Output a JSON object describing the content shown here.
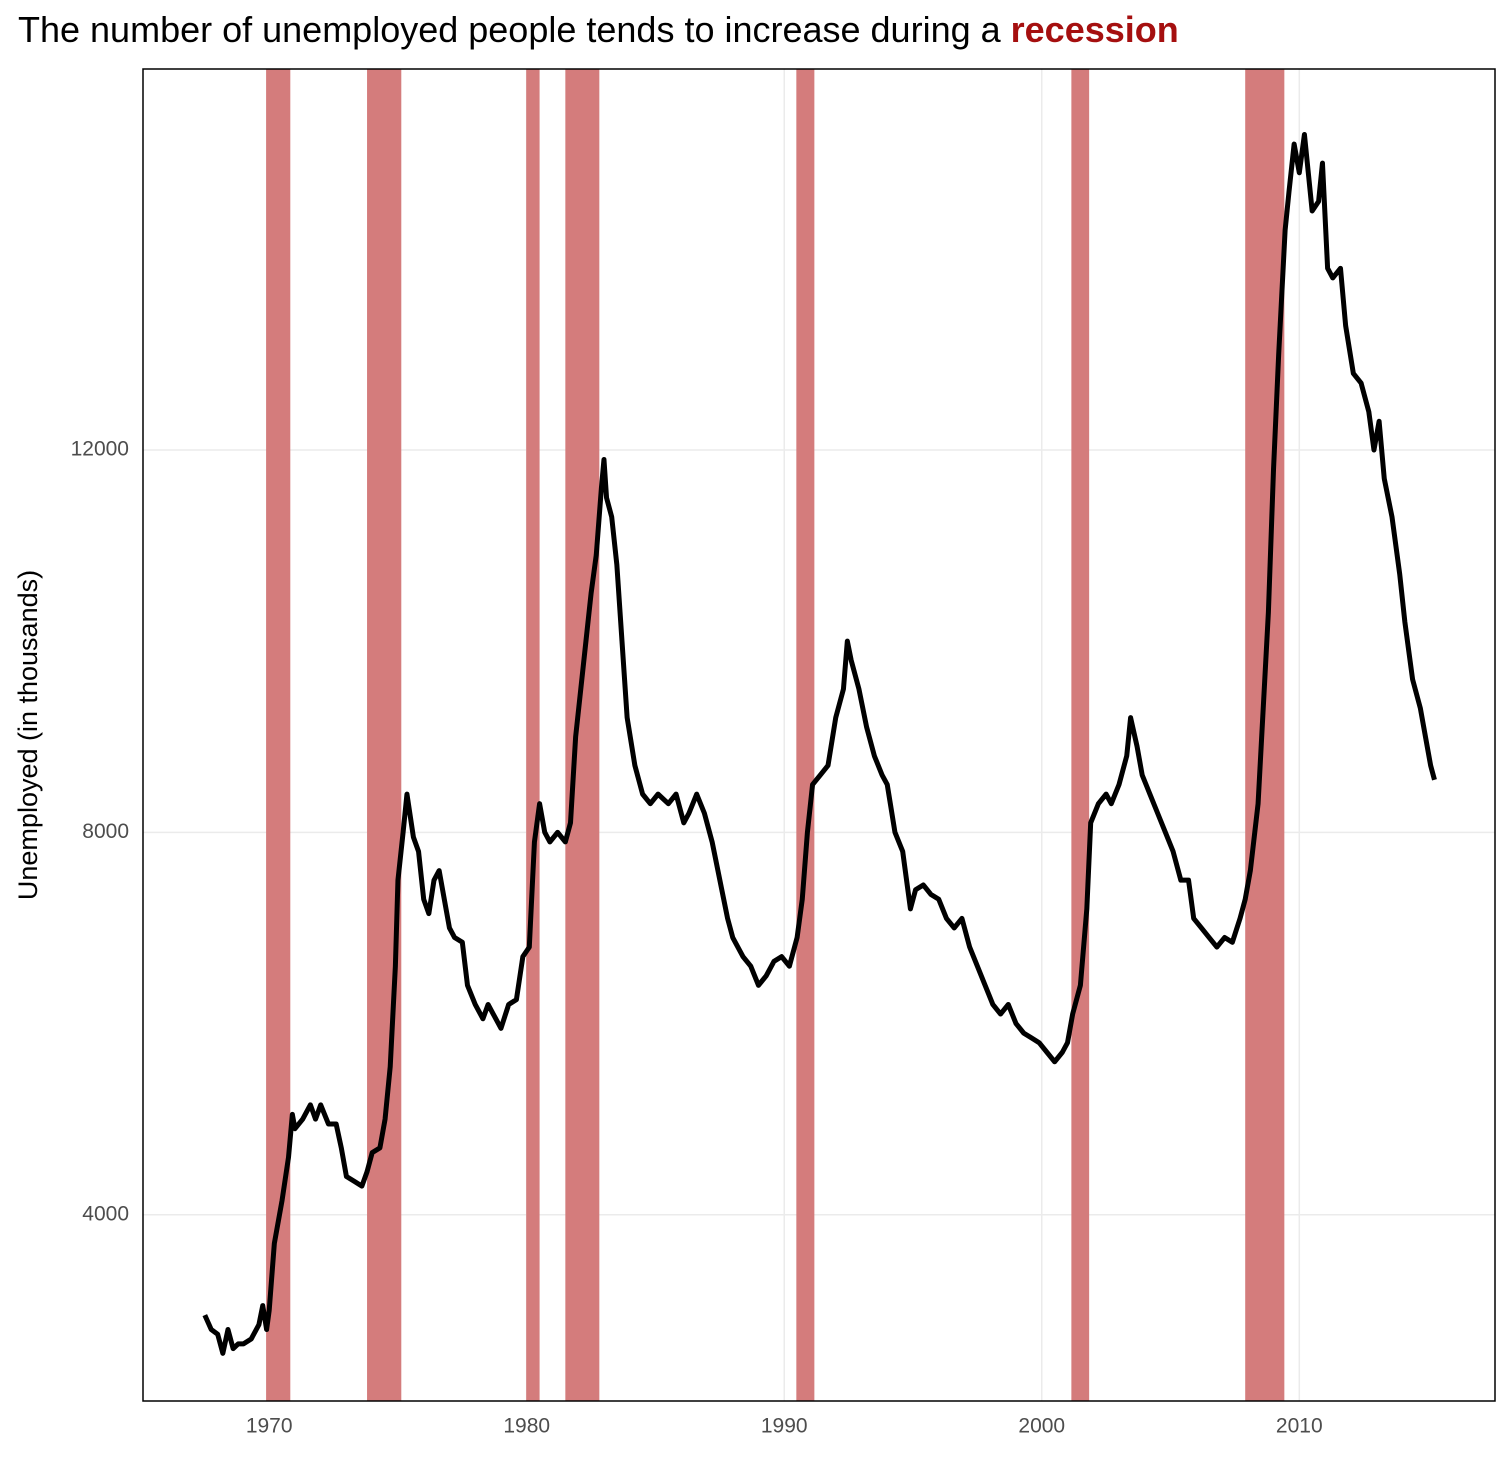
{
  "chart_data": {
    "type": "line",
    "title": "The number of unemployed people tends to increase during a",
    "title_highlight": "recession",
    "highlight_color": "#a50f0f",
    "y_label": "Unemployed (in thousands)",
    "xlim": [
      1965.1,
      2017.6
    ],
    "xticks": [
      1970,
      1980,
      1990,
      2000,
      2010
    ],
    "ylim": [
      2052,
      15985
    ],
    "yticks": [
      4000,
      8000,
      12000
    ],
    "grid": true,
    "recession_color": "#d47c7c",
    "recessions": [
      {
        "start": 1969.88,
        "end": 1970.82
      },
      {
        "start": 1973.8,
        "end": 1975.13
      },
      {
        "start": 1979.98,
        "end": 1980.5
      },
      {
        "start": 1981.5,
        "end": 1982.82
      },
      {
        "start": 1990.47,
        "end": 1991.17
      },
      {
        "start": 2001.15,
        "end": 2001.84
      },
      {
        "start": 2007.9,
        "end": 2009.42
      }
    ],
    "series": [
      {
        "color": "#000000",
        "x": [
          1967.5,
          1967.75,
          1968.0,
          1968.2,
          1968.4,
          1968.6,
          1968.8,
          1969.0,
          1969.3,
          1969.6,
          1969.75,
          1969.9,
          1970.0,
          1970.2,
          1970.5,
          1970.75,
          1970.9,
          1971.0,
          1971.3,
          1971.6,
          1971.8,
          1972.0,
          1972.3,
          1972.6,
          1972.8,
          1973.0,
          1973.3,
          1973.6,
          1973.8,
          1974.0,
          1974.3,
          1974.5,
          1974.7,
          1974.9,
          1975.0,
          1975.2,
          1975.35,
          1975.6,
          1975.8,
          1976.0,
          1976.2,
          1976.4,
          1976.6,
          1976.8,
          1977.0,
          1977.2,
          1977.5,
          1977.7,
          1978.0,
          1978.3,
          1978.5,
          1978.7,
          1979.0,
          1979.3,
          1979.6,
          1979.85,
          1980.1,
          1980.3,
          1980.5,
          1980.7,
          1980.9,
          1981.2,
          1981.5,
          1981.7,
          1981.9,
          1982.1,
          1982.3,
          1982.5,
          1982.7,
          1982.9,
          1983.0,
          1983.1,
          1983.3,
          1983.5,
          1983.7,
          1983.9,
          1984.2,
          1984.5,
          1984.8,
          1985.1,
          1985.5,
          1985.8,
          1986.1,
          1986.3,
          1986.6,
          1986.9,
          1987.2,
          1987.5,
          1987.8,
          1988.0,
          1988.4,
          1988.7,
          1989.0,
          1989.3,
          1989.6,
          1989.9,
          1990.2,
          1990.5,
          1990.7,
          1990.9,
          1991.1,
          1991.4,
          1991.7,
          1992.0,
          1992.3,
          1992.45,
          1992.6,
          1992.9,
          1993.2,
          1993.5,
          1993.8,
          1994.0,
          1994.3,
          1994.6,
          1994.9,
          1995.1,
          1995.4,
          1995.7,
          1996.0,
          1996.3,
          1996.6,
          1996.9,
          1997.2,
          1997.5,
          1997.8,
          1998.1,
          1998.4,
          1998.7,
          1999.0,
          1999.3,
          1999.6,
          1999.9,
          2000.2,
          2000.5,
          2000.8,
          2001.0,
          2001.2,
          2001.5,
          2001.75,
          2001.9,
          2002.2,
          2002.5,
          2002.7,
          2003.0,
          2003.3,
          2003.45,
          2003.7,
          2003.9,
          2004.2,
          2004.5,
          2004.8,
          2005.1,
          2005.4,
          2005.7,
          2005.9,
          2006.2,
          2006.5,
          2006.8,
          2007.1,
          2007.4,
          2007.7,
          2007.9,
          2008.1,
          2008.4,
          2008.6,
          2008.8,
          2009.0,
          2009.2,
          2009.45,
          2009.6,
          2009.8,
          2010.0,
          2010.2,
          2010.5,
          2010.75,
          2010.9,
          2011.1,
          2011.3,
          2011.6,
          2011.8,
          2012.1,
          2012.4,
          2012.7,
          2012.9,
          2013.1,
          2013.3,
          2013.6,
          2013.9,
          2014.1,
          2014.4,
          2014.7,
          2014.9,
          2015.1,
          2015.25
        ],
        "values": [
          2950,
          2800,
          2750,
          2550,
          2800,
          2600,
          2650,
          2650,
          2700,
          2850,
          3050,
          2800,
          3000,
          3700,
          4150,
          4600,
          5050,
          4900,
          5000,
          5150,
          5000,
          5150,
          4950,
          4950,
          4700,
          4400,
          4350,
          4300,
          4450,
          4650,
          4700,
          5000,
          5550,
          6600,
          7500,
          8000,
          8400,
          7950,
          7800,
          7300,
          7150,
          7500,
          7600,
          7300,
          7000,
          6900,
          6850,
          6400,
          6200,
          6050,
          6200,
          6100,
          5950,
          6200,
          6250,
          6700,
          6800,
          7900,
          8300,
          8000,
          7900,
          8000,
          7900,
          8100,
          9000,
          9500,
          10000,
          10500,
          10900,
          11600,
          11900,
          11500,
          11300,
          10800,
          10000,
          9200,
          8700,
          8400,
          8300,
          8400,
          8300,
          8400,
          8100,
          8200,
          8400,
          8200,
          7900,
          7500,
          7100,
          6900,
          6700,
          6600,
          6400,
          6500,
          6650,
          6700,
          6600,
          6900,
          7300,
          8000,
          8500,
          8600,
          8700,
          9200,
          9500,
          10000,
          9800,
          9500,
          9100,
          8800,
          8600,
          8500,
          8000,
          7800,
          7200,
          7400,
          7450,
          7350,
          7300,
          7100,
          7000,
          7100,
          6800,
          6600,
          6400,
          6200,
          6100,
          6200,
          6000,
          5900,
          5850,
          5800,
          5700,
          5600,
          5700,
          5800,
          6100,
          6400,
          7200,
          8100,
          8300,
          8400,
          8300,
          8500,
          8800,
          9200,
          8900,
          8600,
          8400,
          8200,
          8000,
          7800,
          7500,
          7500,
          7100,
          7000,
          6900,
          6800,
          6900,
          6850,
          7100,
          7300,
          7600,
          8300,
          9300,
          10300,
          11800,
          13000,
          14300,
          14700,
          15200,
          14900,
          15300,
          14500,
          14600,
          15000,
          13900,
          13800,
          13900,
          13300,
          12800,
          12700,
          12400,
          12000,
          12300,
          11700,
          11300,
          10700,
          10200,
          9600,
          9300,
          9000,
          8700,
          8550
        ]
      }
    ]
  }
}
